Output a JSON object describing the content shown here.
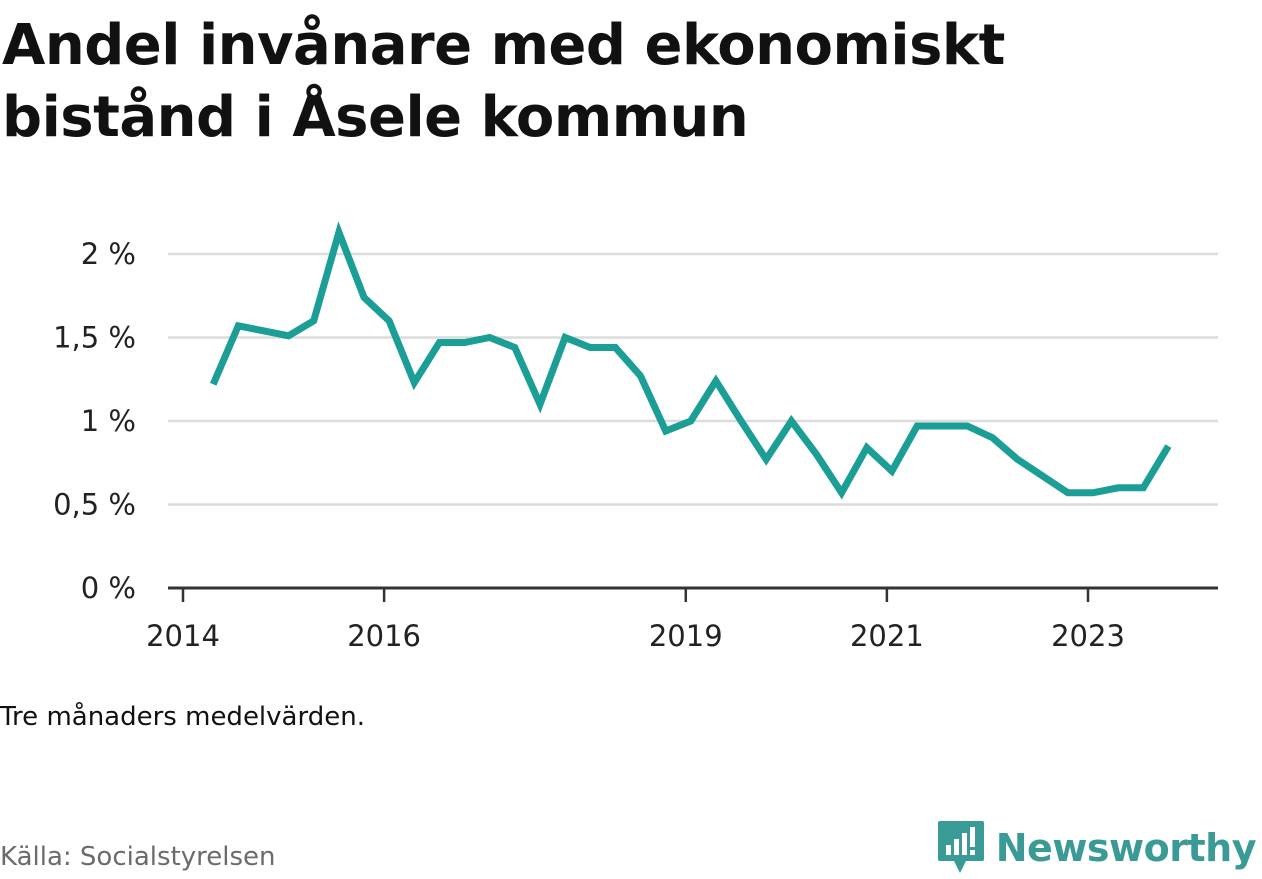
{
  "title": "Andel invånare med ekonomiskt bistånd i Åsele kommun",
  "note": "Tre månaders medelvärden.",
  "source": "Källa: Socialstyrelsen",
  "brand": {
    "name": "Newsworthy",
    "logo_icon": "newsworthy-chart-bubble-icon",
    "color": "#3a9a95"
  },
  "chart_data": {
    "type": "line",
    "title": "Andel invånare med ekonomiskt bistånd i Åsele kommun",
    "xlabel": "",
    "ylabel": "",
    "line_color": "#1a9e96",
    "grid": true,
    "ylim": [
      0,
      2
    ],
    "y_ticks": [
      {
        "value": 0,
        "label": "0 %"
      },
      {
        "value": 0.5,
        "label": "0,5 %"
      },
      {
        "value": 1,
        "label": "1 %"
      },
      {
        "value": 1.5,
        "label": "1,5 %"
      },
      {
        "value": 2,
        "label": "2 %"
      }
    ],
    "x_ticks": [
      {
        "value": 2014.0,
        "label": "2014"
      },
      {
        "value": 2016.0,
        "label": "2016"
      },
      {
        "value": 2019.0,
        "label": "2019"
      },
      {
        "value": 2021.0,
        "label": "2021"
      },
      {
        "value": 2023.0,
        "label": "2023"
      }
    ],
    "xlim": [
      2013.875,
      2024.34
    ],
    "series": [
      {
        "x": [
          2014.3,
          2014.55,
          2014.8,
          2015.05,
          2015.3,
          2015.55,
          2015.8,
          2016.05,
          2016.3,
          2016.55,
          2016.8,
          2017.05,
          2017.3,
          2017.55,
          2017.8,
          2018.05,
          2018.3,
          2018.55,
          2018.8,
          2019.05,
          2019.3,
          2019.55,
          2019.8,
          2020.05,
          2020.3,
          2020.55,
          2020.8,
          2021.05,
          2021.3,
          2021.55,
          2021.8,
          2022.05,
          2022.3,
          2022.55,
          2022.8,
          2023.05,
          2023.3,
          2023.55,
          2023.8
        ],
        "values": [
          1.22,
          1.57,
          1.54,
          1.51,
          1.6,
          2.13,
          1.74,
          1.6,
          1.23,
          1.47,
          1.47,
          1.5,
          1.44,
          1.1,
          1.5,
          1.44,
          1.44,
          1.27,
          0.94,
          1.0,
          1.24,
          1.0,
          0.77,
          1.0,
          0.8,
          0.57,
          0.84,
          0.7,
          0.97,
          0.97,
          0.97,
          0.9,
          0.77,
          0.67,
          0.57,
          0.57,
          0.6,
          0.6,
          0.85
        ]
      }
    ]
  }
}
